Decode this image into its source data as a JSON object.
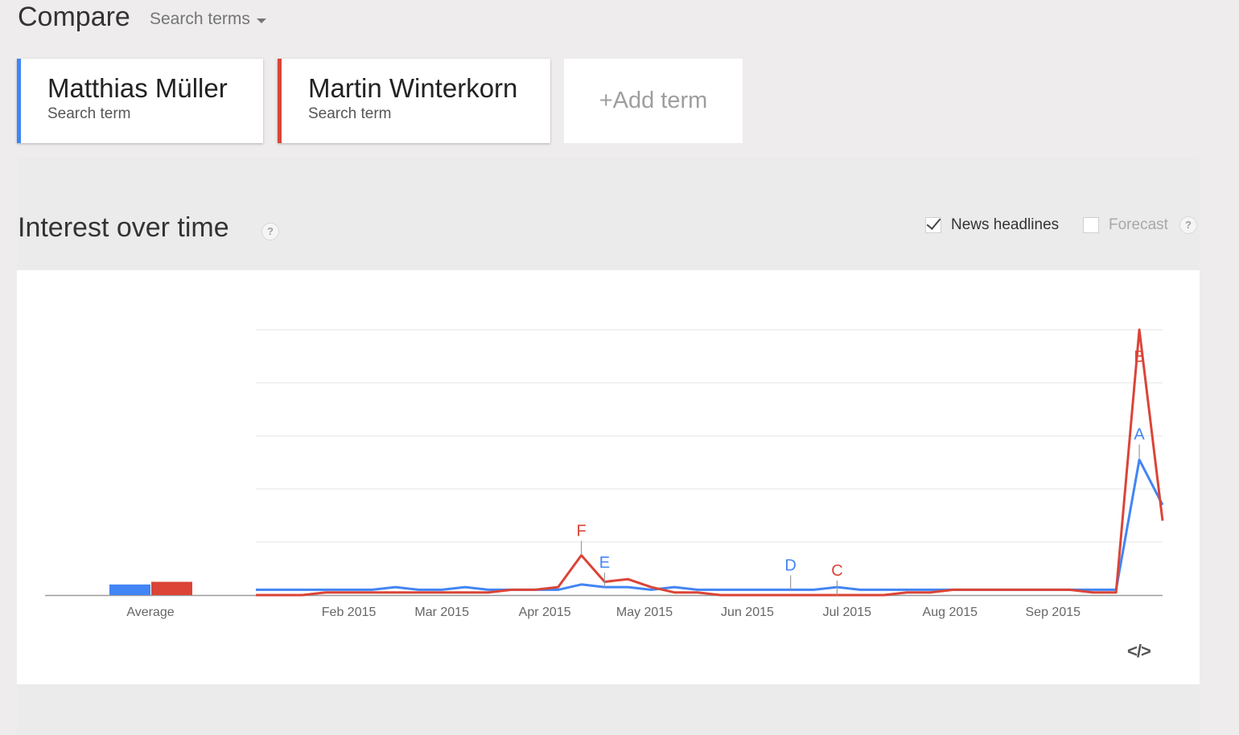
{
  "header": {
    "title": "Compare",
    "dropdown_label": "Search terms",
    "dropdown_icon": "caret-down-icon"
  },
  "terms": [
    {
      "name": "Matthias Müller",
      "subtitle": "Search term",
      "color": "#4285f4"
    },
    {
      "name": "Martin Winterkorn",
      "subtitle": "Search term",
      "color": "#db4437"
    }
  ],
  "add_term": {
    "plus": "+",
    "label": "Add term"
  },
  "section": {
    "title": "Interest over time",
    "help_icon": "?",
    "news_headlines_label": "News headlines",
    "news_headlines_checked": true,
    "forecast_label": "Forecast",
    "forecast_checked": false
  },
  "embed_icon": "</>",
  "chart_data": {
    "type": "line",
    "x_tick_labels": [
      "Feb 2015",
      "Mar 2015",
      "Apr 2015",
      "May 2015",
      "Jun 2015",
      "Jul 2015",
      "Aug 2015",
      "Sep 2015"
    ],
    "x": [
      "2015-01-04",
      "2015-01-11",
      "2015-01-18",
      "2015-01-25",
      "2015-02-01",
      "2015-02-08",
      "2015-02-15",
      "2015-02-22",
      "2015-03-01",
      "2015-03-08",
      "2015-03-15",
      "2015-03-22",
      "2015-03-29",
      "2015-04-05",
      "2015-04-12",
      "2015-04-19",
      "2015-04-26",
      "2015-05-03",
      "2015-05-10",
      "2015-05-17",
      "2015-05-24",
      "2015-05-31",
      "2015-06-07",
      "2015-06-14",
      "2015-06-21",
      "2015-06-28",
      "2015-07-05",
      "2015-07-12",
      "2015-07-19",
      "2015-07-26",
      "2015-08-02",
      "2015-08-09",
      "2015-08-16",
      "2015-08-23",
      "2015-08-30",
      "2015-09-06",
      "2015-09-13",
      "2015-09-20",
      "2015-09-27",
      "2015-10-04"
    ],
    "ylim": [
      0,
      100
    ],
    "grid": true,
    "series": [
      {
        "name": "Matthias Müller",
        "color": "#4285f4",
        "values": [
          2,
          2,
          2,
          2,
          2,
          2,
          3,
          2,
          2,
          3,
          2,
          2,
          2,
          2,
          4,
          3,
          3,
          2,
          3,
          2,
          2,
          2,
          2,
          2,
          2,
          3,
          2,
          2,
          2,
          2,
          2,
          2,
          2,
          2,
          2,
          2,
          2,
          2,
          51,
          34
        ]
      },
      {
        "name": "Martin Winterkorn",
        "color": "#db4437",
        "values": [
          0,
          0,
          0,
          1,
          1,
          1,
          1,
          1,
          1,
          1,
          1,
          2,
          2,
          3,
          15,
          5,
          6,
          3,
          1,
          1,
          0,
          0,
          0,
          0,
          0,
          0,
          0,
          0,
          1,
          1,
          2,
          2,
          2,
          2,
          2,
          2,
          1,
          1,
          100,
          28
        ]
      }
    ],
    "average": {
      "label": "Average",
      "values": [
        4,
        5
      ]
    },
    "markers": [
      {
        "label": "A",
        "x": "2015-09-27",
        "series": 0
      },
      {
        "label": "B",
        "x": "2015-09-27",
        "series": 1
      },
      {
        "label": "C",
        "x": "2015-06-28",
        "series": 1
      },
      {
        "label": "D",
        "x": "2015-06-14",
        "series": 0
      },
      {
        "label": "E",
        "x": "2015-04-19",
        "series": 0
      },
      {
        "label": "F",
        "x": "2015-04-12",
        "series": 1
      }
    ]
  }
}
